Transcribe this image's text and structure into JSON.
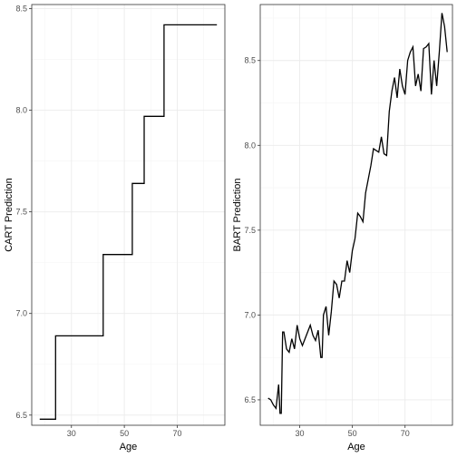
{
  "chart_data": [
    {
      "type": "line",
      "step": true,
      "xlabel": "Age",
      "ylabel": "CART Prediction",
      "xlim": [
        15,
        88
      ],
      "ylim": [
        6.45,
        8.52
      ],
      "xticks": [
        30,
        50,
        70
      ],
      "xtick_labels": [
        "30",
        "50",
        "70"
      ],
      "yticks": [
        6.5,
        7.0,
        7.5,
        8.0,
        8.5
      ],
      "ytick_labels": [
        "6.5",
        "7.0",
        "7.5",
        "8.0",
        "8.5"
      ],
      "grid": true,
      "series": [
        {
          "x": [
            18,
            24,
            24,
            42,
            42,
            53,
            53,
            57.5,
            57.5,
            65,
            65,
            85
          ],
          "y": [
            6.48,
            6.48,
            6.89,
            6.89,
            7.29,
            7.29,
            7.64,
            7.64,
            7.97,
            7.97,
            8.42,
            8.42
          ]
        }
      ]
    },
    {
      "type": "line",
      "xlabel": "Age",
      "ylabel": "BART Prediction",
      "xlim": [
        15,
        88
      ],
      "ylim": [
        6.35,
        8.83
      ],
      "xticks": [
        30,
        50,
        70
      ],
      "xtick_labels": [
        "30",
        "50",
        "70"
      ],
      "yticks": [
        6.5,
        7.0,
        7.5,
        8.0,
        8.5
      ],
      "ytick_labels": [
        "6.5",
        "7.0",
        "7.5",
        "8.0",
        "8.5"
      ],
      "grid": true,
      "series": [
        {
          "x": [
            18,
            19,
            20,
            21,
            22,
            22.5,
            23,
            23.5,
            24,
            25,
            26,
            27,
            28,
            29,
            30,
            31,
            32,
            33,
            34,
            35,
            36,
            37,
            38,
            38.5,
            39,
            40,
            41,
            42,
            43,
            44,
            45,
            46,
            47,
            48,
            49,
            50,
            51,
            52,
            53,
            54,
            55,
            56,
            57,
            58,
            59,
            60,
            61,
            62,
            63,
            64,
            65,
            66,
            67,
            68,
            69,
            70,
            71,
            72,
            73,
            74,
            75,
            76,
            77,
            78,
            79,
            80,
            81,
            82,
            83,
            84,
            85,
            86
          ],
          "y": [
            6.51,
            6.5,
            6.47,
            6.45,
            6.59,
            6.42,
            6.42,
            6.9,
            6.9,
            6.8,
            6.78,
            6.86,
            6.8,
            6.94,
            6.86,
            6.82,
            6.86,
            6.9,
            6.94,
            6.88,
            6.85,
            6.91,
            6.75,
            6.75,
            7.0,
            7.05,
            6.88,
            7.02,
            7.2,
            7.18,
            7.1,
            7.2,
            7.2,
            7.32,
            7.25,
            7.38,
            7.45,
            7.6,
            7.58,
            7.55,
            7.72,
            7.8,
            7.88,
            7.98,
            7.97,
            7.96,
            8.05,
            7.95,
            7.94,
            8.2,
            8.32,
            8.4,
            8.28,
            8.45,
            8.35,
            8.3,
            8.5,
            8.55,
            8.58,
            8.35,
            8.42,
            8.32,
            8.57,
            8.58,
            8.6,
            8.3,
            8.5,
            8.35,
            8.55,
            8.78,
            8.7,
            8.55
          ]
        }
      ]
    }
  ]
}
